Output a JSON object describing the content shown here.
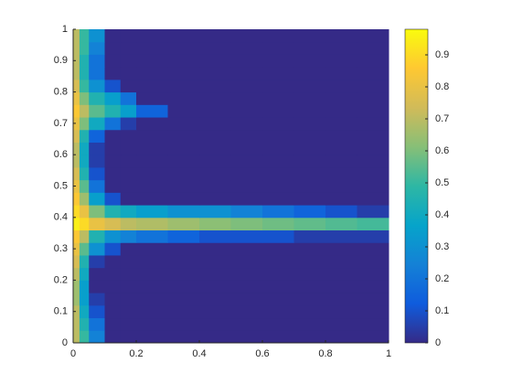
{
  "chart_data": {
    "type": "heatmap",
    "x_edges": [
      0,
      0.02,
      0.05,
      0.1,
      0.15,
      0.2,
      0.3,
      0.4,
      0.5,
      0.6,
      0.7,
      0.8,
      0.9,
      1
    ],
    "y_edges": [
      0,
      0.04,
      0.08,
      0.12,
      0.16,
      0.2,
      0.24,
      0.28,
      0.32,
      0.36,
      0.4,
      0.44,
      0.48,
      0.52,
      0.56,
      0.6,
      0.64,
      0.68,
      0.72,
      0.76,
      0.8,
      0.84,
      0.88,
      0.92,
      0.96,
      1
    ],
    "z": [
      [
        0.7,
        0.5,
        0.25,
        0,
        0,
        0,
        0,
        0,
        0,
        0,
        0,
        0,
        0
      ],
      [
        0.7,
        0.45,
        0.2,
        0,
        0,
        0,
        0,
        0,
        0,
        0,
        0,
        0,
        0
      ],
      [
        0.7,
        0.4,
        0.1,
        0,
        0,
        0,
        0,
        0,
        0,
        0,
        0,
        0,
        0
      ],
      [
        0.65,
        0.35,
        0.05,
        0,
        0,
        0,
        0,
        0,
        0,
        0,
        0,
        0,
        0
      ],
      [
        0.65,
        0.35,
        0,
        0,
        0,
        0,
        0,
        0,
        0,
        0,
        0,
        0,
        0
      ],
      [
        0.7,
        0.4,
        0,
        0,
        0,
        0,
        0,
        0,
        0,
        0,
        0,
        0,
        0
      ],
      [
        0.75,
        0.45,
        0.05,
        0,
        0,
        0,
        0,
        0,
        0,
        0,
        0,
        0,
        0
      ],
      [
        0.8,
        0.55,
        0.3,
        0.1,
        0,
        0,
        0,
        0,
        0,
        0,
        0,
        0,
        0
      ],
      [
        0.85,
        0.7,
        0.45,
        0.3,
        0.25,
        0.2,
        0.15,
        0.1,
        0.1,
        0.1,
        0.05,
        0.05,
        0.05
      ],
      [
        0.95,
        0.9,
        0.8,
        0.75,
        0.7,
        0.68,
        0.65,
        0.62,
        0.6,
        0.58,
        0.56,
        0.54,
        0.52
      ],
      [
        0.9,
        0.8,
        0.6,
        0.45,
        0.4,
        0.35,
        0.3,
        0.3,
        0.25,
        0.2,
        0.15,
        0.1,
        0.05
      ],
      [
        0.85,
        0.65,
        0.35,
        0.1,
        0,
        0,
        0,
        0,
        0,
        0,
        0,
        0,
        0
      ],
      [
        0.8,
        0.55,
        0.2,
        0,
        0,
        0,
        0,
        0,
        0,
        0,
        0,
        0,
        0
      ],
      [
        0.75,
        0.45,
        0.1,
        0,
        0,
        0,
        0,
        0,
        0,
        0,
        0,
        0,
        0
      ],
      [
        0.7,
        0.4,
        0.05,
        0,
        0,
        0,
        0,
        0,
        0,
        0,
        0,
        0,
        0
      ],
      [
        0.7,
        0.4,
        0.05,
        0,
        0,
        0,
        0,
        0,
        0,
        0,
        0,
        0,
        0
      ],
      [
        0.75,
        0.45,
        0.15,
        0,
        0,
        0,
        0,
        0,
        0,
        0,
        0,
        0,
        0
      ],
      [
        0.8,
        0.6,
        0.4,
        0.2,
        0.05,
        0,
        0,
        0,
        0,
        0,
        0,
        0,
        0
      ],
      [
        0.85,
        0.7,
        0.55,
        0.45,
        0.35,
        0.15,
        0,
        0,
        0,
        0,
        0,
        0,
        0
      ],
      [
        0.8,
        0.6,
        0.45,
        0.35,
        0.2,
        0,
        0,
        0,
        0,
        0,
        0,
        0,
        0
      ],
      [
        0.75,
        0.5,
        0.3,
        0.1,
        0,
        0,
        0,
        0,
        0,
        0,
        0,
        0,
        0
      ],
      [
        0.7,
        0.45,
        0.2,
        0,
        0,
        0,
        0,
        0,
        0,
        0,
        0,
        0,
        0
      ],
      [
        0.7,
        0.45,
        0.2,
        0,
        0,
        0,
        0,
        0,
        0,
        0,
        0,
        0,
        0
      ],
      [
        0.7,
        0.5,
        0.25,
        0,
        0,
        0,
        0,
        0,
        0,
        0,
        0,
        0,
        0
      ],
      [
        0.7,
        0.5,
        0.3,
        0,
        0,
        0,
        0,
        0,
        0,
        0,
        0,
        0,
        0
      ]
    ],
    "xlim": [
      0,
      1
    ],
    "ylim": [
      0,
      1
    ],
    "xticks": [
      0,
      0.2,
      0.4,
      0.6,
      0.8,
      1
    ],
    "yticks": [
      0,
      0.1,
      0.2,
      0.3,
      0.4,
      0.5,
      0.6,
      0.7,
      0.8,
      0.9,
      1
    ],
    "clim": [
      0,
      0.98
    ],
    "cticks": [
      0,
      0.1,
      0.2,
      0.3,
      0.4,
      0.5,
      0.6,
      0.7,
      0.8,
      0.9
    ],
    "colormap": [
      "#352a87",
      "#0f5cdd",
      "#1481d6",
      "#06a4ca",
      "#2eb7a4",
      "#87bf77",
      "#d1bb59",
      "#fec832",
      "#f9fb0e"
    ],
    "colorbar": true
  }
}
